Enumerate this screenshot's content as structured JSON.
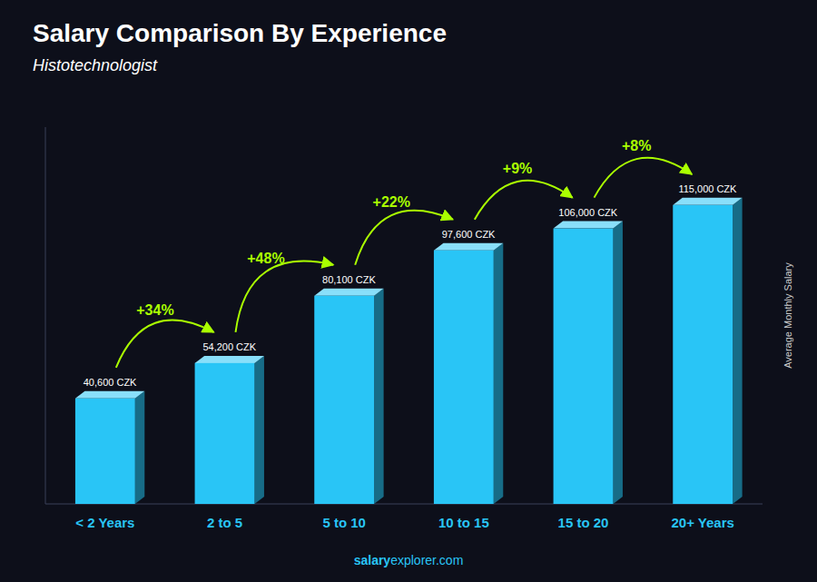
{
  "chart_data": {
    "type": "bar",
    "title": "Salary Comparison By Experience",
    "subtitle": "Histotechnologist",
    "ylabel": "Average Monthly Salary",
    "categories": [
      "< 2 Years",
      "2 to 5",
      "5 to 10",
      "10 to 15",
      "15 to 20",
      "20+ Years"
    ],
    "values": [
      40600,
      54200,
      80100,
      97600,
      106000,
      115000
    ],
    "value_labels": [
      "40,600 CZK",
      "54,200 CZK",
      "80,100 CZK",
      "97,600 CZK",
      "106,000 CZK",
      "115,000 CZK"
    ],
    "annotations": [
      "+34%",
      "+48%",
      "+22%",
      "+9%",
      "+8%"
    ],
    "footer": [
      "salary",
      "explorer.com"
    ],
    "color": "#29c5f6",
    "ylim": [
      0,
      145000
    ],
    "tick_labels": "x",
    "data_labels": true,
    "grid": false
  }
}
